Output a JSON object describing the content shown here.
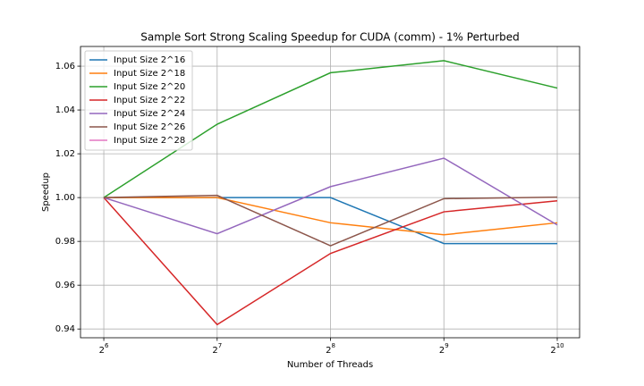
{
  "chart_data": {
    "type": "line",
    "title": "Sample Sort Strong Scaling Speedup for CUDA (comm) - 1% Perturbed",
    "xlabel": "Number of Threads",
    "ylabel": "Speedup",
    "x": [
      64,
      128,
      256,
      512,
      1024
    ],
    "xscale": "log2",
    "xlim": [
      55.5,
      1174
    ],
    "xticks": [
      {
        "value": 64,
        "label": "2^6"
      },
      {
        "value": 128,
        "label": "2^7"
      },
      {
        "value": 256,
        "label": "2^8"
      },
      {
        "value": 512,
        "label": "2^9"
      },
      {
        "value": 1024,
        "label": "2^10"
      }
    ],
    "ylim": [
      0.936,
      1.069
    ],
    "yticks": [
      {
        "value": 0.94,
        "label": "0.94"
      },
      {
        "value": 0.96,
        "label": "0.96"
      },
      {
        "value": 0.98,
        "label": "0.98"
      },
      {
        "value": 1.0,
        "label": "1.00"
      },
      {
        "value": 1.02,
        "label": "1.02"
      },
      {
        "value": 1.04,
        "label": "1.04"
      },
      {
        "value": 1.06,
        "label": "1.06"
      }
    ],
    "grid": true,
    "legend": "upper-left",
    "series": [
      {
        "name": "Input Size 2^16",
        "color": "#1f77b4",
        "values": [
          1.0,
          1.0,
          1.0,
          0.979,
          0.979
        ]
      },
      {
        "name": "Input Size 2^18",
        "color": "#ff7f0e",
        "values": [
          1.0,
          1.0,
          0.9885,
          0.983,
          0.9885
        ]
      },
      {
        "name": "Input Size 2^20",
        "color": "#2ca02c",
        "values": [
          1.0,
          1.0335,
          1.057,
          1.0625,
          1.05
        ]
      },
      {
        "name": "Input Size 2^22",
        "color": "#d62728",
        "values": [
          1.0,
          0.942,
          0.9745,
          0.9935,
          0.9985
        ]
      },
      {
        "name": "Input Size 2^24",
        "color": "#9467bd",
        "values": [
          1.0,
          0.9835,
          1.005,
          1.018,
          0.9875
        ]
      },
      {
        "name": "Input Size 2^26",
        "color": "#8c564b",
        "values": [
          1.0,
          1.001,
          0.978,
          0.9995,
          1.0002
        ]
      },
      {
        "name": "Input Size 2^28",
        "color": "#e377c2",
        "values": [
          null,
          null,
          null,
          null,
          null
        ]
      }
    ]
  }
}
